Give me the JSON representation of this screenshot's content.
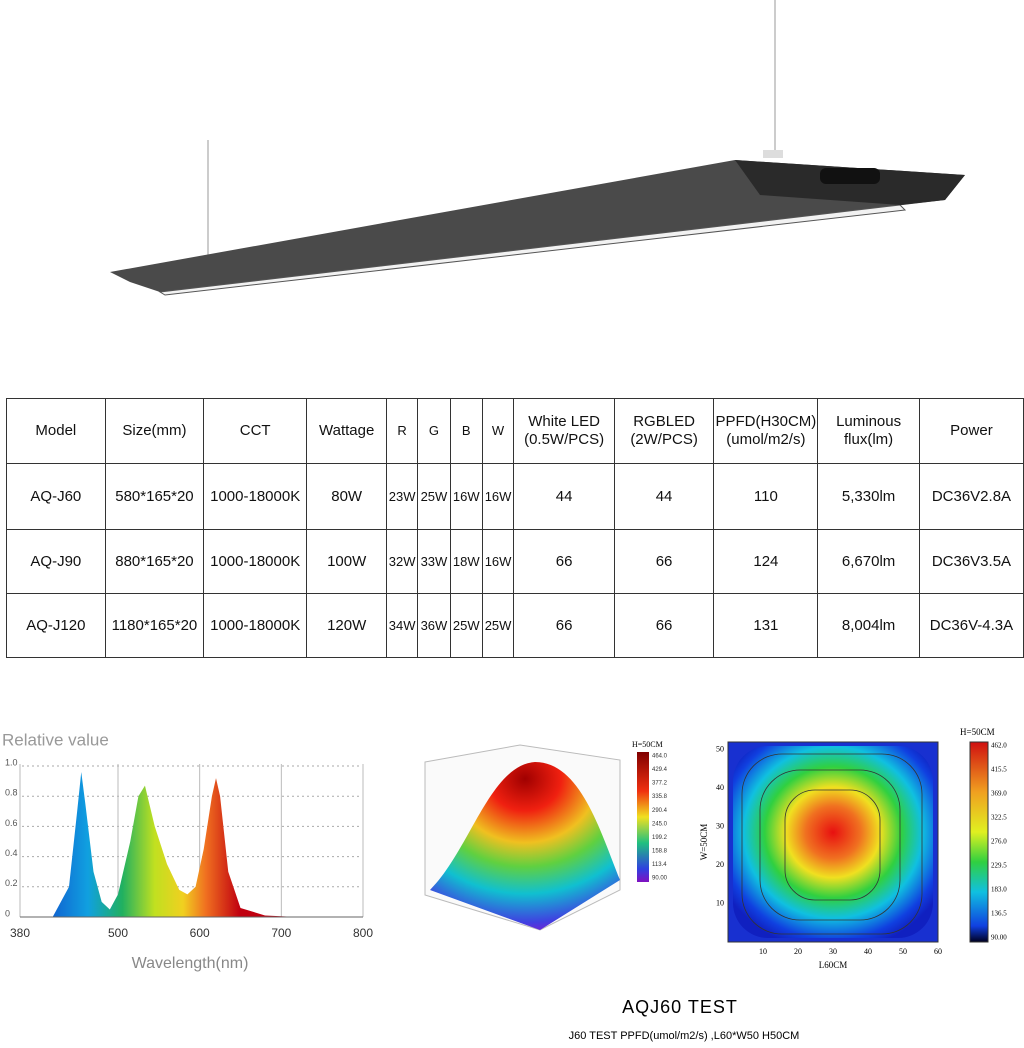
{
  "table": {
    "header": [
      "Model",
      "Size(mm)",
      "CCT",
      "Wattage",
      "R",
      "G",
      "B",
      "W",
      "White LED (0.5W/PCS)",
      "RGBLED (2W/PCS)",
      "PPFD(H30CM) (umol/m2/s)",
      "Luminous flux(lm)",
      "Power"
    ],
    "rows": [
      [
        "AQ-J60",
        "580*165*20",
        "1000-18000K",
        "80W",
        "23W",
        "25W",
        "16W",
        "16W",
        "44",
        "44",
        "110",
        "5,330lm",
        "DC36V2.8A"
      ],
      [
        "AQ-J90",
        "880*165*20",
        "1000-18000K",
        "100W",
        "32W",
        "33W",
        "18W",
        "16W",
        "66",
        "66",
        "124",
        "6,670lm",
        "DC36V3.5A"
      ],
      [
        "AQ-J120",
        "1180*165*20",
        "1000-18000K",
        "120W",
        "34W",
        "36W",
        "25W",
        "25W",
        "66",
        "66",
        "131",
        "8,004lm",
        "DC36V-4.3A"
      ]
    ]
  },
  "chart_data": {
    "type": "area",
    "title": "Relative value",
    "xlabel": "Wavelength(nm)",
    "x": [
      420,
      440,
      450,
      455,
      460,
      470,
      480,
      490,
      500,
      515,
      525,
      533,
      545,
      560,
      575,
      585,
      595,
      605,
      615,
      620,
      625,
      635,
      650,
      680,
      720
    ],
    "values": [
      0,
      0.2,
      0.7,
      0.96,
      0.75,
      0.3,
      0.1,
      0.05,
      0.15,
      0.5,
      0.8,
      0.87,
      0.6,
      0.35,
      0.18,
      0.15,
      0.2,
      0.45,
      0.8,
      0.92,
      0.8,
      0.3,
      0.06,
      0.01,
      0
    ],
    "xlim": [
      380,
      800
    ],
    "xticks": [
      380,
      500,
      600,
      700,
      800
    ],
    "ylim": [
      0,
      1
    ],
    "yticks": [
      0,
      0.2,
      0.4,
      0.6,
      0.8,
      {
        "value": 1,
        "label": "1.0"
      }
    ],
    "grid": true
  },
  "surface": {
    "title": "H=50CM",
    "colorbar_labels": [
      "464.0",
      "429.4",
      "377.2",
      "335.8",
      "290.4",
      "245.0",
      "199.2",
      "158.8",
      "113.4",
      "90.00"
    ]
  },
  "heatmap": {
    "title": "H=50CM",
    "xlabel": "L60CM",
    "ylabel": "W=50CM",
    "xticks": [
      10,
      20,
      30,
      40,
      50,
      60
    ],
    "yticks": [
      10,
      20,
      30,
      40,
      50
    ],
    "colorbar_labels": [
      "462.0",
      "415.5",
      "369.0",
      "322.5",
      "276.0",
      "229.5",
      "183.0",
      "136.5",
      "90.00"
    ]
  },
  "caption": {
    "title": "AQJ60  TEST",
    "subtitle": "J60 TEST PPFD(umol/m2/s) ,L60*W50 H50CM"
  }
}
